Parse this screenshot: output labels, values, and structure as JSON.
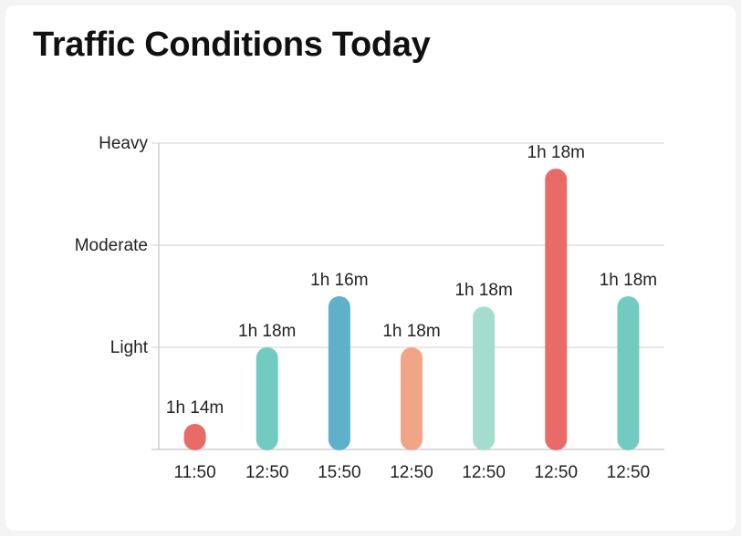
{
  "title": "Traffic Conditions Today",
  "chart_data": {
    "type": "bar",
    "title": "Traffic Conditions Today",
    "categories": [
      "11:50",
      "12:50",
      "15:50",
      "12:50",
      "12:50",
      "12:50",
      "12:50"
    ],
    "values": [
      0.25,
      1.0,
      1.5,
      1.0,
      1.4,
      2.75,
      1.5
    ],
    "data_labels": [
      "1h 14m",
      "1h 18m",
      "1h 16m",
      "1h 18m",
      "1h 18m",
      "1h 18m",
      "1h 18m"
    ],
    "bar_colors": [
      "#e96b68",
      "#72cbc0",
      "#5fb0cb",
      "#f0a586",
      "#a4dccf",
      "#e96b68",
      "#72cbc0"
    ],
    "y_ticks": [
      {
        "value": 1,
        "label": "Light"
      },
      {
        "value": 2,
        "label": "Moderate"
      },
      {
        "value": 3,
        "label": "Heavy"
      }
    ],
    "ylim": [
      0,
      3
    ],
    "grid": true,
    "xlabel": "",
    "ylabel": ""
  }
}
